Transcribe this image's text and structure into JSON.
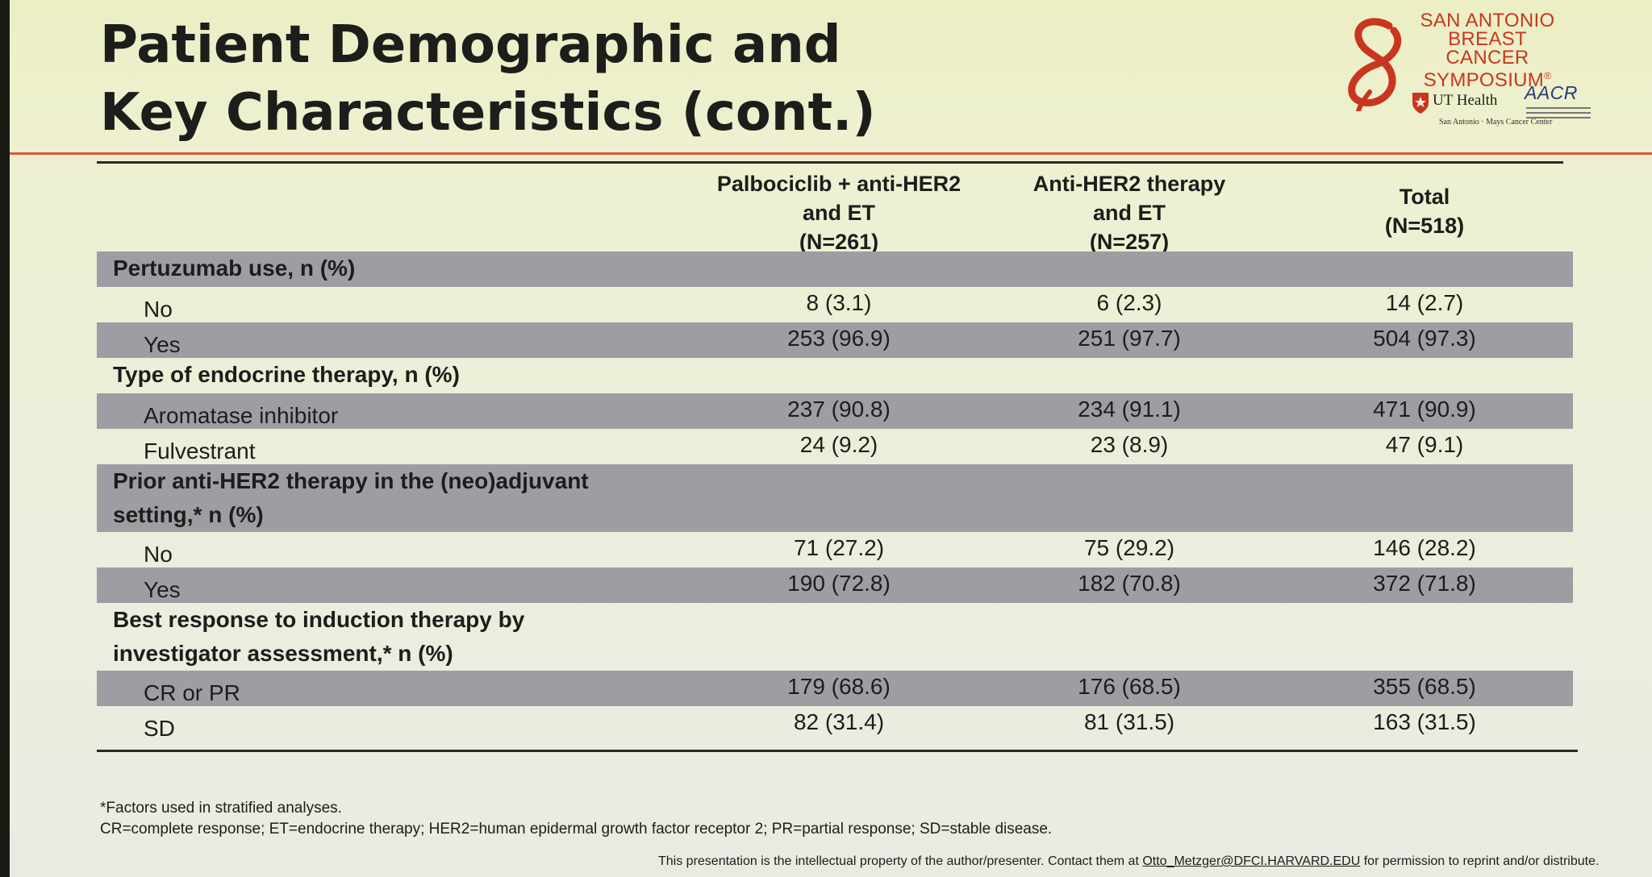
{
  "slide": {
    "title_line1": "Patient Demographic and",
    "title_line2": "Key Characteristics (cont.)"
  },
  "logo": {
    "line1": "SAN ANTONIO",
    "line2": "BREAST CANCER",
    "line3": "SYMPOSIUM",
    "line3_mark": "®",
    "ut_health": "UT Health",
    "ut_sub1": "San Antonio",
    "ut_sub2": "Mays Cancer Center",
    "aacr": "AACR",
    "aacr_sub": "American Association for Cancer Research",
    "brand_color": "#c9361f"
  },
  "table": {
    "columns": [
      {
        "line1": "Palbociclib + anti-HER2",
        "line2": "and ET",
        "line3": "(N=261)"
      },
      {
        "line1": "Anti-HER2 therapy",
        "line2": "and ET",
        "line3": "(N=257)"
      },
      {
        "line1": "Total",
        "line2": "(N=518)",
        "line3": ""
      }
    ],
    "rows": [
      {
        "type": "section",
        "label": "Pertuzumab use, n (%)",
        "label2": "",
        "shaded": true
      },
      {
        "type": "item",
        "label": "No",
        "values": [
          "8 (3.1)",
          "6 (2.3)",
          "14 (2.7)"
        ],
        "shaded": false
      },
      {
        "type": "item",
        "label": "Yes",
        "values": [
          "253 (96.9)",
          "251 (97.7)",
          "504 (97.3)"
        ],
        "shaded": true
      },
      {
        "type": "section",
        "label": "Type of endocrine therapy, n (%)",
        "label2": "",
        "shaded": false
      },
      {
        "type": "item",
        "label": "Aromatase inhibitor",
        "values": [
          "237 (90.8)",
          "234 (91.1)",
          "471 (90.9)"
        ],
        "shaded": true
      },
      {
        "type": "item",
        "label": "Fulvestrant",
        "values": [
          "24 (9.2)",
          "23 (8.9)",
          "47 (9.1)"
        ],
        "shaded": false
      },
      {
        "type": "section",
        "label": "Prior anti-HER2 therapy in the (neo)adjuvant",
        "label2": "setting,* n (%)",
        "shaded": true
      },
      {
        "type": "item",
        "label": "No",
        "values": [
          "71 (27.2)",
          "75 (29.2)",
          "146 (28.2)"
        ],
        "shaded": false
      },
      {
        "type": "item",
        "label": "Yes",
        "values": [
          "190 (72.8)",
          "182 (70.8)",
          "372 (71.8)"
        ],
        "shaded": true
      },
      {
        "type": "section",
        "label": "Best response to induction therapy by",
        "label2": "investigator assessment,* n (%)",
        "shaded": false
      },
      {
        "type": "item",
        "label": "CR or PR",
        "values": [
          "179 (68.6)",
          "176 (68.5)",
          "355 (68.5)"
        ],
        "shaded": true
      },
      {
        "type": "item",
        "label": "SD",
        "values": [
          "82 (31.4)",
          "81 (31.5)",
          "163 (31.5)"
        ],
        "shaded": false
      }
    ]
  },
  "footnotes": {
    "line1": "*Factors used in stratified analyses.",
    "line2": "CR=complete response; ET=endocrine therapy; HER2=human epidermal growth factor receptor 2; PR=partial response; SD=stable disease."
  },
  "ip_notice": {
    "prefix": "This presentation is the intellectual property of the author/presenter. Contact them at ",
    "email": "Otto_Metzger@DFCI.HARVARD.EDU",
    "suffix": " for permission to reprint and/or distribute."
  },
  "colors": {
    "accent_rule": "#d45a3a",
    "row_shade": "#9d9ea3",
    "background": "#eceedd"
  }
}
